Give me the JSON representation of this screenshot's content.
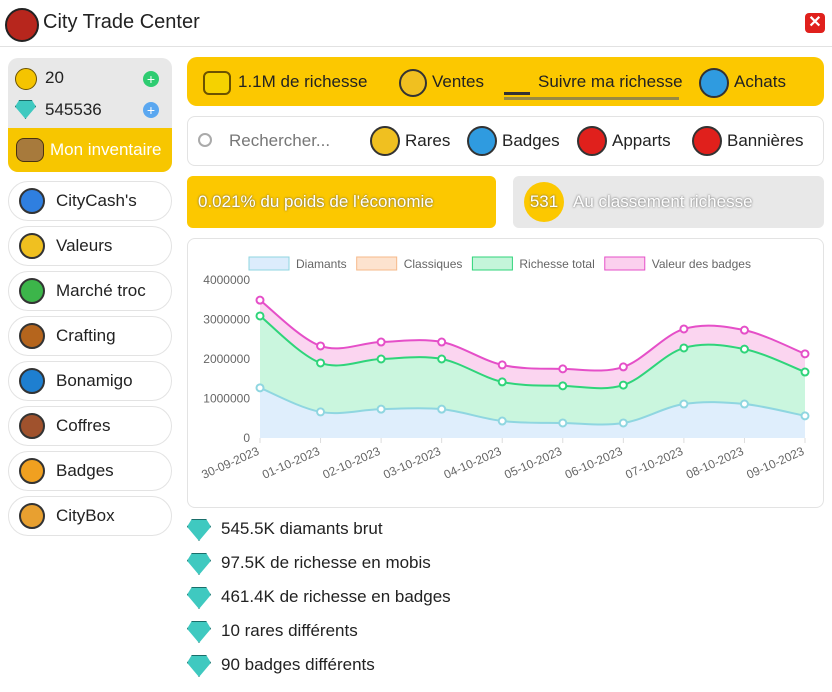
{
  "header": {
    "title": "City Trade Center"
  },
  "wallet": {
    "coins": 20,
    "diamonds": 545536
  },
  "inventory_button": "Mon inventaire",
  "menu": [
    "CityCash's",
    "Valeurs",
    "Marché troc",
    "Crafting",
    "Bonamigo",
    "Coffres",
    "Badges",
    "CityBox"
  ],
  "tabs": [
    "1.1M de richesse",
    "Ventes",
    "Suivre ma richesse",
    "Achats"
  ],
  "search": {
    "placeholder": "Rechercher...",
    "filters": [
      "Rares",
      "Badges",
      "Apparts",
      "Bannières"
    ]
  },
  "stats": {
    "economy_share": "0.021% du poids de l'économie",
    "rank": 531,
    "rank_label": "Au classement richesse"
  },
  "chart_data": {
    "type": "line",
    "x": [
      "30-09-2023",
      "01-10-2023",
      "02-10-2023",
      "03-10-2023",
      "04-10-2023",
      "05-10-2023",
      "06-10-2023",
      "07-10-2023",
      "08-10-2023",
      "09-10-2023"
    ],
    "series": [
      {
        "name": "Diamants",
        "color": "#8fd6e0",
        "fill": "#dcecfc",
        "values": [
          1270000,
          660000,
          730000,
          730000,
          430000,
          380000,
          380000,
          860000,
          860000,
          560000
        ]
      },
      {
        "name": "Classiques",
        "color": "#f6b98a",
        "fill": "#fde3cf",
        "values": [
          null,
          null,
          null,
          null,
          null,
          null,
          null,
          null,
          null,
          null
        ]
      },
      {
        "name": "Richesse total",
        "color": "#2fd47a",
        "fill": "#c4f5da",
        "values": [
          3090000,
          1900000,
          2000000,
          2000000,
          1420000,
          1320000,
          1340000,
          2280000,
          2250000,
          1670000
        ]
      },
      {
        "name": "Valeur des badges",
        "color": "#e54fc8",
        "fill": "#fbd0ee",
        "values": [
          3490000,
          2330000,
          2430000,
          2430000,
          1850000,
          1750000,
          1800000,
          2760000,
          2730000,
          2130000
        ]
      }
    ],
    "ylim": [
      0,
      4000000
    ],
    "yticks": [
      0,
      1000000,
      2000000,
      3000000,
      4000000
    ],
    "grid": false
  },
  "summary": [
    "545.5K diamants brut",
    "97.5K de richesse en mobis",
    "461.4K de richesse en badges",
    "10 rares différents",
    "90 badges différents"
  ]
}
